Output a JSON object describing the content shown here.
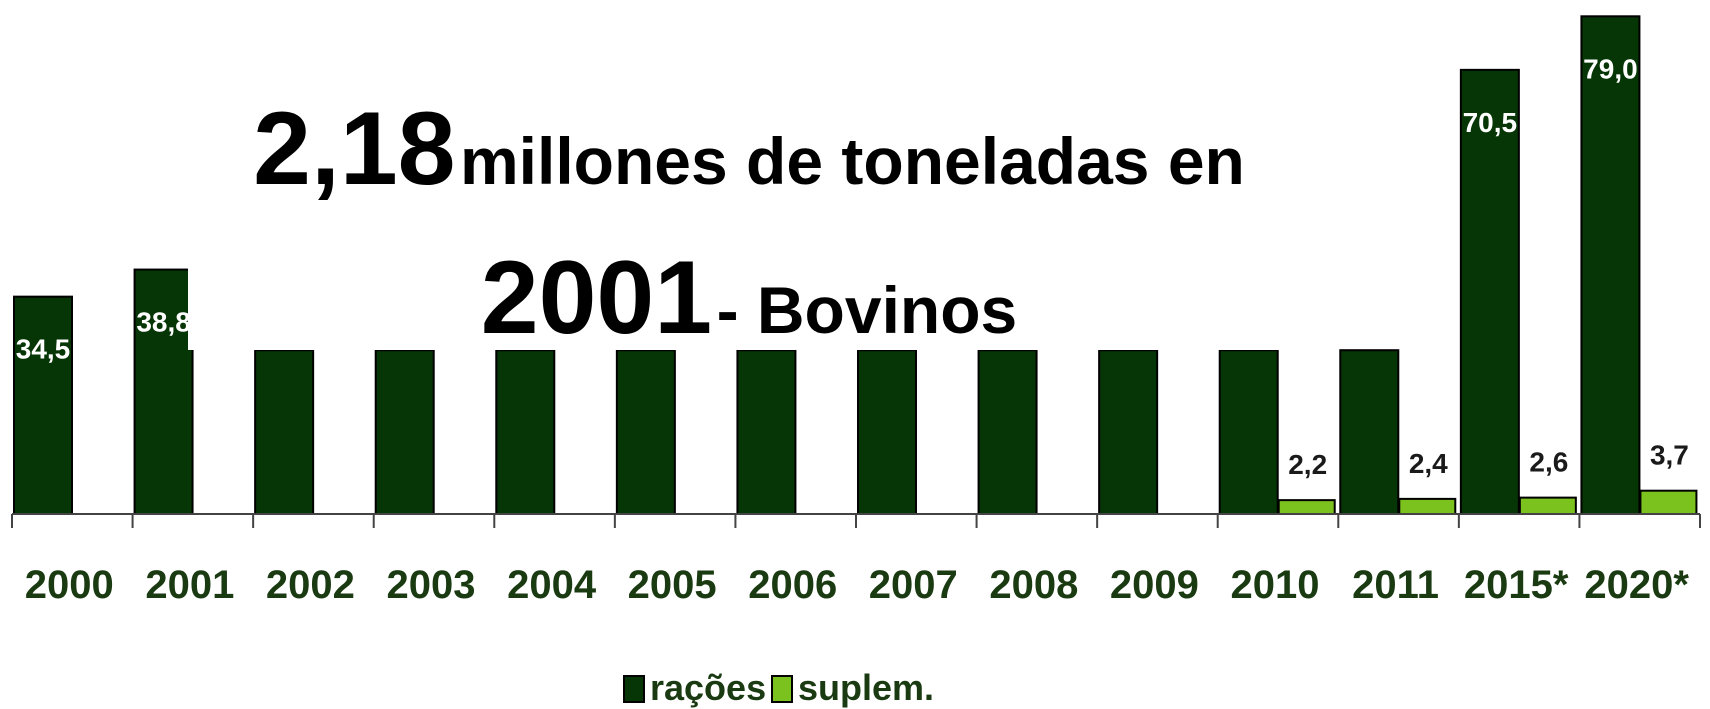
{
  "colors": {
    "racoes": "#063506",
    "suplem": "#7cc21e",
    "text_dark": "#1a3a12"
  },
  "title": {
    "line1_number": "2,18",
    "line1_text": "millones de toneladas en",
    "line2_year": "2001",
    "line2_text": "- Bovinos"
  },
  "chart_data": {
    "type": "bar",
    "categories": [
      "2000",
      "2001",
      "2002",
      "2003",
      "2004",
      "2005",
      "2006",
      "2007",
      "2008",
      "2009",
      "2010",
      "2011",
      "2015*",
      "2020*"
    ],
    "ylim": [
      0,
      80
    ],
    "legend_position": "bottom-center",
    "series": [
      {
        "name": "rações",
        "values": [
          34.5,
          38.8,
          26,
          26,
          26,
          26,
          26,
          26,
          26,
          26,
          26,
          26,
          70.5,
          79.0
        ],
        "labels": [
          "34,5",
          "38,8",
          "",
          "",
          "",
          "",
          "",
          "",
          "",
          "",
          "",
          "",
          "70,5",
          "79,0"
        ]
      },
      {
        "name": "suplem.",
        "values": [
          null,
          null,
          null,
          null,
          null,
          null,
          null,
          null,
          null,
          null,
          2.2,
          2.4,
          2.6,
          3.7
        ],
        "labels": [
          "",
          "",
          "",
          "",
          "",
          "",
          "",
          "",
          "",
          "",
          "2,2",
          "2,4",
          "2,6",
          "3,7"
        ]
      }
    ]
  }
}
